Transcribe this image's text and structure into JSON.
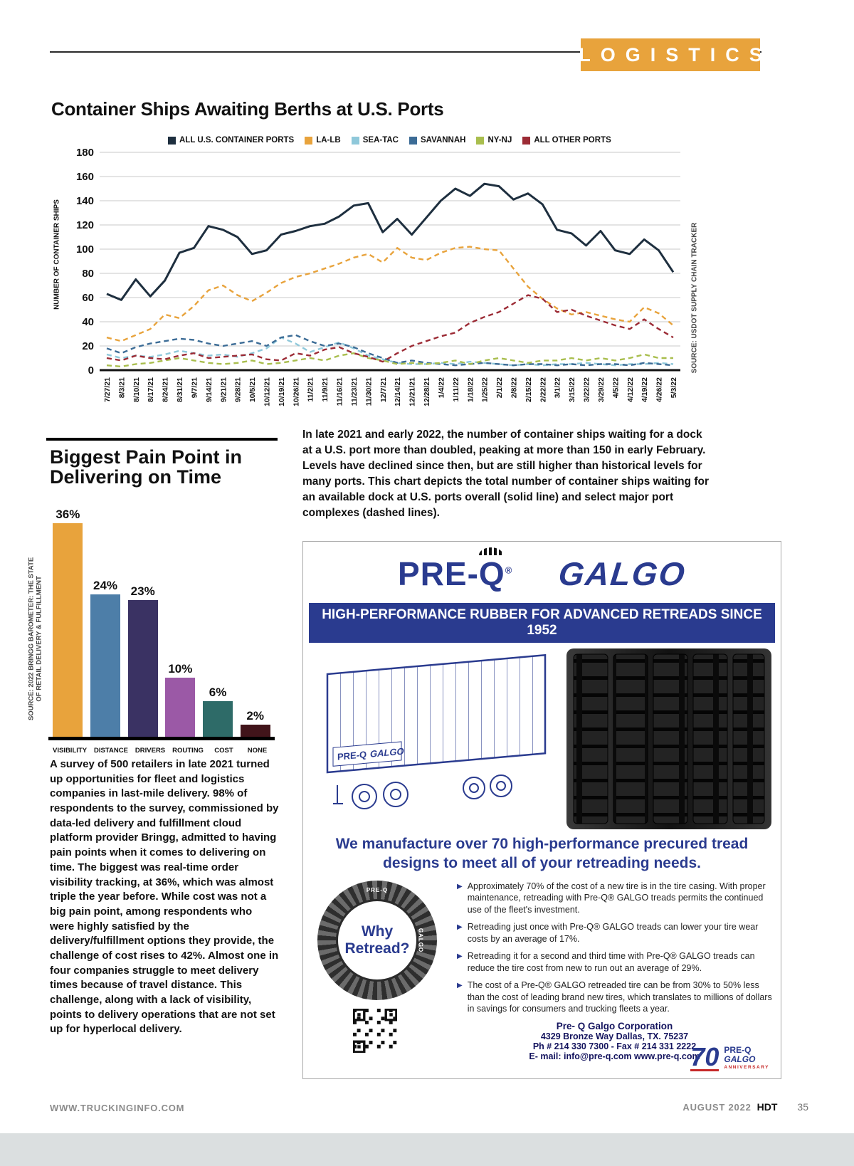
{
  "header": {
    "section": "LOGISTICS"
  },
  "chart_data": [
    {
      "type": "line",
      "title": "Container Ships Awaiting Berths at U.S. Ports",
      "ylabel": "NUMBER OF CONTAINER SHIPS",
      "source": "SOURCE: USDOT SUPPLY CHAIN TRACKER",
      "ylim": [
        0,
        180
      ],
      "ytick_step": 20,
      "grid": "horizontal",
      "legend_position": "top",
      "x": [
        "7/27/21",
        "8/3/21",
        "8/10/21",
        "8/17/21",
        "8/24/21",
        "8/31/21",
        "9/7/21",
        "9/14/21",
        "9/21/21",
        "9/28/21",
        "10/5/21",
        "10/12/21",
        "10/19/21",
        "10/26/21",
        "11/2/21",
        "11/9/21",
        "11/16/21",
        "11/23/21",
        "11/30/21",
        "12/7/21",
        "12/14/21",
        "12/21/21",
        "12/28/21",
        "1/4/22",
        "1/11/22",
        "1/18/22",
        "1/25/22",
        "2/1/22",
        "2/8/22",
        "2/15/22",
        "2/22/22",
        "3/1/22",
        "3/15/22",
        "3/22/22",
        "3/29/22",
        "4/5/22",
        "4/12/22",
        "4/19/22",
        "4/26/22",
        "5/3/22"
      ],
      "series": [
        {
          "name": "ALL U.S. CONTAINER PORTS",
          "color": "#1e2f3f",
          "dashed": false,
          "values": [
            63,
            58,
            75,
            61,
            74,
            97,
            101,
            119,
            116,
            110,
            96,
            99,
            112,
            115,
            119,
            121,
            127,
            136,
            138,
            114,
            125,
            112,
            126,
            140,
            150,
            144,
            154,
            152,
            141,
            146,
            137,
            116,
            113,
            103,
            115,
            99,
            96,
            108,
            99,
            81
          ]
        },
        {
          "name": "LA-LB",
          "color": "#e8a33c",
          "dashed": true,
          "values": [
            27,
            24,
            29,
            34,
            46,
            43,
            53,
            66,
            70,
            62,
            57,
            64,
            72,
            77,
            80,
            84,
            88,
            93,
            96,
            89,
            101,
            93,
            91,
            97,
            101,
            102,
            100,
            99,
            84,
            69,
            59,
            51,
            46,
            48,
            45,
            42,
            40,
            52,
            47,
            37
          ]
        },
        {
          "name": "SEA-TAC",
          "color": "#8fc8da",
          "dashed": true,
          "values": [
            13,
            10,
            12,
            11,
            13,
            16,
            14,
            12,
            13,
            11,
            14,
            18,
            27,
            22,
            15,
            19,
            23,
            18,
            12,
            9,
            6,
            5,
            5,
            6,
            5,
            7,
            6,
            5,
            4,
            5,
            4,
            5,
            5,
            6,
            5,
            4,
            5,
            5,
            6,
            5
          ]
        },
        {
          "name": "SAVANNAH",
          "color": "#3c6c96",
          "dashed": true,
          "values": [
            18,
            14,
            19,
            22,
            24,
            26,
            25,
            22,
            20,
            22,
            24,
            20,
            27,
            29,
            24,
            20,
            22,
            19,
            14,
            10,
            6,
            8,
            6,
            5,
            4,
            5,
            6,
            5,
            4,
            5,
            5,
            4,
            5,
            4,
            5,
            5,
            4,
            6,
            5,
            4
          ]
        },
        {
          "name": "NY-NJ",
          "color": "#a9be4e",
          "dashed": true,
          "values": [
            4,
            3,
            5,
            6,
            8,
            10,
            8,
            6,
            5,
            6,
            8,
            5,
            6,
            8,
            10,
            8,
            12,
            14,
            10,
            8,
            5,
            6,
            5,
            6,
            8,
            5,
            8,
            10,
            8,
            6,
            8,
            8,
            10,
            8,
            10,
            8,
            10,
            13,
            10,
            10
          ]
        },
        {
          "name": "ALL OTHER PORTS",
          "color": "#9c2b35",
          "dashed": true,
          "values": [
            10,
            8,
            12,
            10,
            9,
            12,
            14,
            10,
            11,
            12,
            13,
            9,
            8,
            14,
            12,
            17,
            19,
            14,
            11,
            7,
            14,
            20,
            24,
            28,
            31,
            39,
            44,
            48,
            55,
            62,
            59,
            48,
            50,
            45,
            41,
            37,
            34,
            42,
            34,
            27
          ]
        }
      ]
    },
    {
      "type": "bar",
      "title": "Biggest Pain Point in Delivering on Time",
      "title_lines": [
        "Biggest Pain Point in",
        "Delivering on Time"
      ],
      "source_lines": [
        "SOURCE: 2022 BRINGG BAROMETER: THE STATE",
        "OF RETAIL DELIVERY & FULFILLMENT"
      ],
      "categories": [
        "VISIBILITY",
        "DISTANCE",
        "DRIVERS",
        "ROUTING",
        "COST",
        "NONE"
      ],
      "values": [
        36,
        24,
        23,
        10,
        6,
        2
      ],
      "value_labels": [
        "36%",
        "24%",
        "23%",
        "10%",
        "6%",
        "2%"
      ],
      "colors": [
        "#e8a33c",
        "#4d7ea8",
        "#3a3263",
        "#9b59a6",
        "#2e6b68",
        "#41141a"
      ],
      "ylim": [
        0,
        40
      ],
      "grid": "off"
    }
  ],
  "commentary": {
    "chart_note": "In late 2021 and early 2022, the number of container ships waiting for a dock at a U.S. port more than doubled, peaking at more than 150 in early February. Levels have declined since then, but are still higher than historical levels for many ports. This chart depicts the total number of container ships waiting for an available dock at U.S. ports overall (solid line) and select major port complexes (dashed lines).",
    "pain_point_body": "A survey of 500 retailers in late 2021 turned up opportunities for fleet and logistics companies in last-mile delivery. 98% of respondents to the survey, commissioned by data-led delivery and fulfillment cloud platform provider Bringg, admitted to having pain points when it comes to delivering on time. The biggest was real-time order visibility tracking, at 36%, which was almost triple the year before. While cost was not a big pain point, among respondents who were highly satisfied by the delivery/fulfillment options they provide, the challenge of cost rises to 42%. Almost one in four companies struggle to meet delivery times because of travel distance. This challenge, along with a lack of visibility, points to delivery operations that are not set up for hyperlocal delivery."
  },
  "ad": {
    "brand": "PRE-",
    "brand_q": "Q",
    "brand_reg": "®",
    "brand2": "GALGO",
    "banner": "HIGH-PERFORMANCE RUBBER FOR ADVANCED RETREADS SINCE 1952",
    "trailer_logo1": "PRE-Q",
    "trailer_logo2": "GALGO",
    "tagline_line1": "We manufacture over 70 high-performance precured tread",
    "tagline_line2": "designs to meet all of your retreading needs.",
    "badge_line1": "Why",
    "badge_line2": "Retread?",
    "badge_ring_top": "PRE-Q",
    "badge_ring_side": "GALGO",
    "bullets": [
      "Approximately 70% of the cost of a new tire is in the tire casing. With proper maintenance, retreading with Pre-Q® GALGO treads permits the continued use of the fleet's investment.",
      "Retreading just once with Pre-Q® GALGO treads can lower your tire wear costs by an average of 17%.",
      "Retreading it for a second and third time with Pre-Q® GALGO treads can reduce the tire cost from new to run out an average of 29%.",
      "The cost of a Pre-Q® GALGO retreaded tire can be from 30% to 50% less than the cost of leading brand new tires, which translates to millions of dollars in savings for consumers and trucking fleets a year."
    ],
    "contact": {
      "name": "Pre- Q Galgo Corporation",
      "address": "4329 Bronze Way Dallas, TX. 75237",
      "phone": "Ph # 214 330 7300 - Fax # 214 331 2222",
      "email": "E- mail: info@pre-q.com   www.pre-q.com"
    },
    "anniversary": {
      "number": "70",
      "brand1": "PRE-Q",
      "brand2": "GALGO",
      "label": "ANNIVERSARY"
    }
  },
  "footer": {
    "site": "WWW.TRUCKINGINFO.COM",
    "issue": "AUGUST 2022",
    "brand": "HDT",
    "page": "35"
  }
}
